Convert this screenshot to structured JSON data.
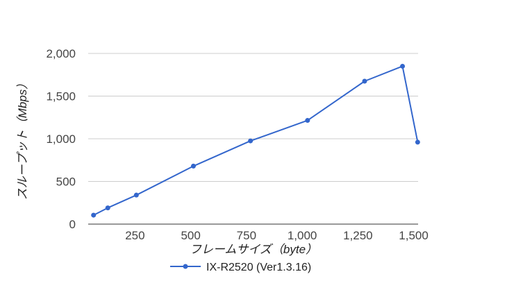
{
  "chart_data": {
    "type": "line",
    "xlabel": "フレームサイズ（byte）",
    "ylabel": "スループット（Mbps）",
    "xlim": [
      40,
      1520
    ],
    "ylim": [
      0,
      2000
    ],
    "x_ticks": [
      250,
      500,
      750,
      1000,
      1250,
      1500
    ],
    "x_tick_labels": [
      "250",
      "500",
      "750",
      "1,000",
      "1,250",
      "1,500"
    ],
    "y_ticks": [
      0,
      500,
      1000,
      1500,
      2000
    ],
    "y_tick_labels": [
      "0",
      "500",
      "1,000",
      "1,500",
      "2,000"
    ],
    "grid": true,
    "legend_position": "bottom",
    "series": [
      {
        "name": "IX-R2520 (Ver1.3.16)",
        "color": "#3366cc",
        "x": [
          64,
          128,
          256,
          512,
          768,
          1024,
          1280,
          1450,
          1518
        ],
        "y": [
          105,
          190,
          340,
          680,
          975,
          1215,
          1675,
          1850,
          960
        ]
      }
    ]
  }
}
